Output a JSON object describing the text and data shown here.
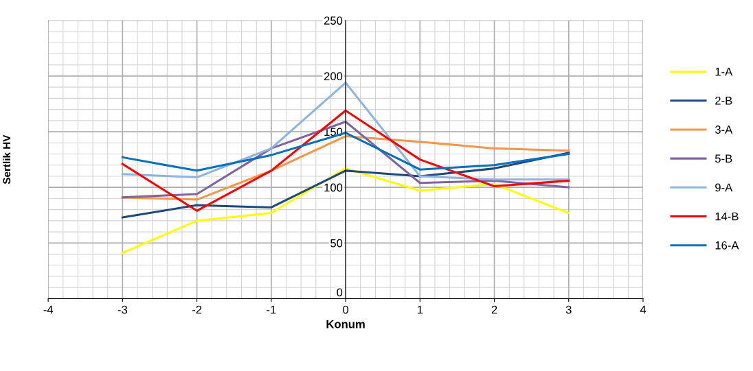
{
  "chart_data": {
    "type": "line",
    "xlabel": "Konum",
    "ylabel": "Sertlik HV",
    "x": [
      -3,
      -2,
      -1,
      0,
      1,
      2,
      3
    ],
    "xlim": [
      -4,
      4
    ],
    "xticks": [
      -4,
      -3,
      -2,
      -1,
      0,
      1,
      2,
      3,
      4
    ],
    "ylim": [
      0,
      250
    ],
    "yticks": [
      0,
      50,
      100,
      150,
      200,
      250
    ],
    "grid": true,
    "legend": "right",
    "marker": "none",
    "line_style": "solid",
    "series": [
      {
        "name": "1-A",
        "color": "#ffff00",
        "values": [
          41,
          70,
          77,
          117,
          97,
          103,
          77
        ]
      },
      {
        "name": "2-B",
        "color": "#1f497d",
        "values": [
          73,
          84,
          82,
          115,
          110,
          117,
          131
        ]
      },
      {
        "name": "3-A",
        "color": "#f79646",
        "values": [
          91,
          89,
          115,
          146,
          141,
          135,
          133
        ]
      },
      {
        "name": "5-B",
        "color": "#8064a2",
        "values": [
          91,
          94,
          135,
          159,
          104,
          106,
          100
        ]
      },
      {
        "name": "9-A",
        "color": "#8db4e2",
        "values": [
          112,
          109,
          135,
          194,
          110,
          107,
          107
        ]
      },
      {
        "name": "14-B",
        "color": "#ff0000",
        "values": [
          121,
          79,
          115,
          169,
          125,
          101,
          106
        ]
      },
      {
        "name": "16-A",
        "color": "#0070c0",
        "values": [
          127,
          115,
          129,
          149,
          116,
          120,
          130
        ]
      }
    ]
  }
}
